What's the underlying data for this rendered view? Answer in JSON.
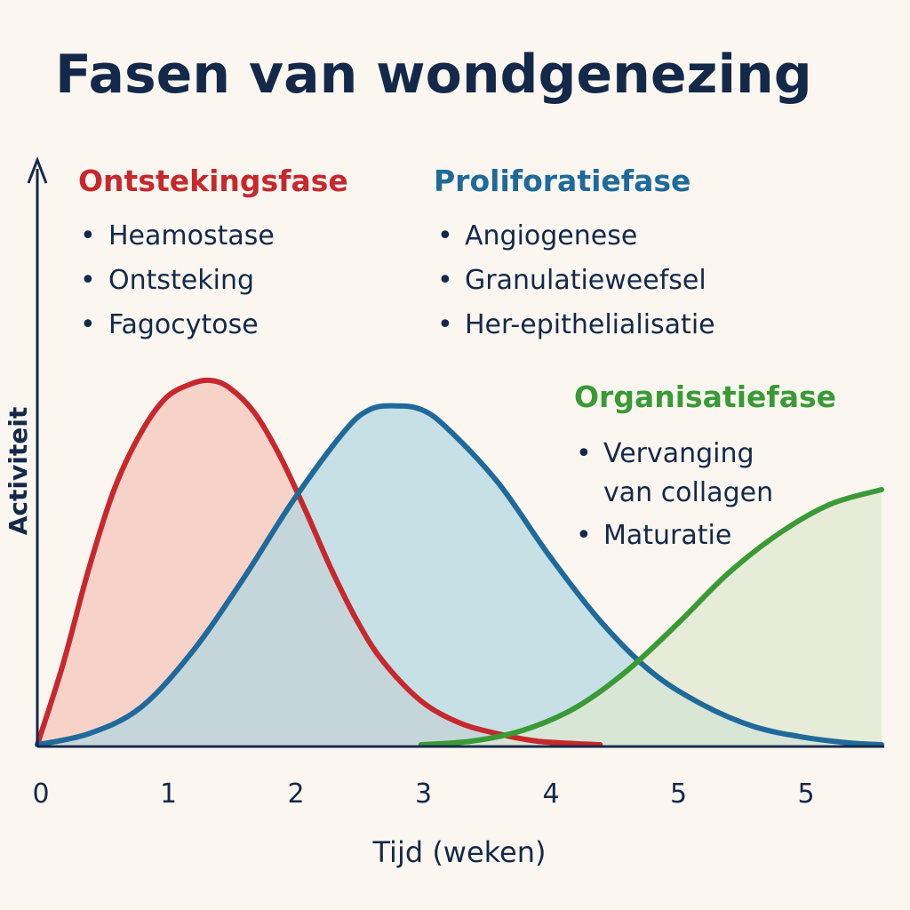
{
  "chart_data": {
    "type": "area",
    "title": "Fasen van wondgenezing",
    "xlabel": "Tijd (weken)",
    "ylabel": "Activiteit",
    "x_ticks": [
      "0",
      "1",
      "2",
      "3",
      "4",
      "5",
      "5"
    ],
    "xlim": [
      0,
      6.6
    ],
    "ylim": [
      0,
      1
    ],
    "grid": false,
    "series": [
      {
        "name": "Ontstekingsfase",
        "color": "#c6282d",
        "fill": "#f4c3ba",
        "bullets": [
          "Heamostase",
          "Ontsteking",
          "Fagocytose"
        ],
        "x": [
          0,
          0.2,
          0.4,
          0.6,
          0.8,
          1.0,
          1.2,
          1.35,
          1.5,
          1.7,
          1.9,
          2.1,
          2.3,
          2.5,
          2.7,
          3.0,
          3.3,
          3.6,
          3.9,
          4.2,
          4.4
        ],
        "y": [
          0,
          0.22,
          0.48,
          0.7,
          0.85,
          0.95,
          0.99,
          1.0,
          0.98,
          0.91,
          0.79,
          0.64,
          0.48,
          0.34,
          0.23,
          0.12,
          0.06,
          0.03,
          0.01,
          0.003,
          0
        ]
      },
      {
        "name": "Proliforatiefase",
        "color": "#1f6a9a",
        "fill": "#b1d7e1",
        "bullets": [
          "Angiogenese",
          "Granulatieweefsel",
          "Her-epithelialisatie"
        ],
        "x": [
          0,
          0.4,
          0.8,
          1.2,
          1.6,
          2.0,
          2.4,
          2.6,
          2.8,
          3.0,
          3.2,
          3.6,
          4.0,
          4.4,
          4.8,
          5.2,
          5.6,
          6.0,
          6.35,
          6.6
        ],
        "y": [
          0,
          0.03,
          0.1,
          0.25,
          0.45,
          0.67,
          0.86,
          0.92,
          0.93,
          0.92,
          0.87,
          0.72,
          0.52,
          0.34,
          0.2,
          0.11,
          0.05,
          0.02,
          0.005,
          0
        ]
      },
      {
        "name": "Organisatiefase",
        "color": "#3a9a36",
        "fill": "#dfe7d0",
        "bullets": [
          "Vervanging van collagen",
          "Maturatie"
        ],
        "x": [
          3.0,
          3.4,
          3.8,
          4.2,
          4.6,
          5.0,
          5.4,
          5.8,
          6.2,
          6.6
        ],
        "y": [
          0,
          0.01,
          0.04,
          0.1,
          0.2,
          0.33,
          0.47,
          0.58,
          0.66,
          0.7
        ]
      }
    ]
  }
}
